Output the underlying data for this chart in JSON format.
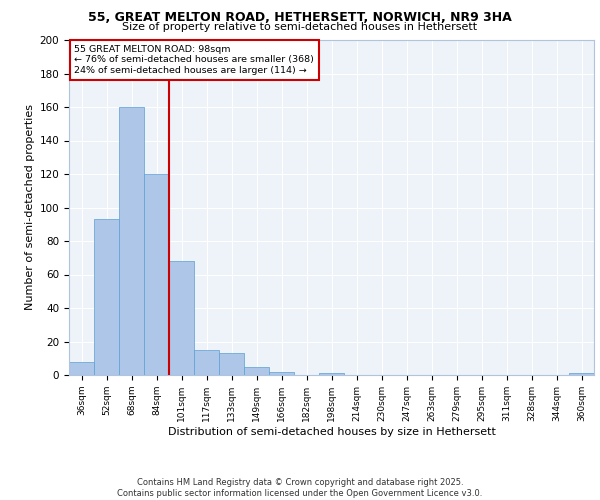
{
  "title_line1": "55, GREAT MELTON ROAD, HETHERSETT, NORWICH, NR9 3HA",
  "title_line2": "Size of property relative to semi-detached houses in Hethersett",
  "xlabel": "Distribution of semi-detached houses by size in Hethersett",
  "ylabel": "Number of semi-detached properties",
  "categories": [
    "36sqm",
    "52sqm",
    "68sqm",
    "84sqm",
    "101sqm",
    "117sqm",
    "133sqm",
    "149sqm",
    "166sqm",
    "182sqm",
    "198sqm",
    "214sqm",
    "230sqm",
    "247sqm",
    "263sqm",
    "279sqm",
    "295sqm",
    "311sqm",
    "328sqm",
    "344sqm",
    "360sqm"
  ],
  "values": [
    8,
    93,
    160,
    120,
    68,
    15,
    13,
    5,
    2,
    0,
    1,
    0,
    0,
    0,
    0,
    0,
    0,
    0,
    0,
    0,
    1
  ],
  "bar_color": "#aec6e8",
  "bar_edge_color": "#5a9fd4",
  "vline_color": "#cc0000",
  "annotation_box_color": "#cc0000",
  "annotation_title": "55 GREAT MELTON ROAD: 98sqm",
  "annotation_line2": "← 76% of semi-detached houses are smaller (368)",
  "annotation_line3": "24% of semi-detached houses are larger (114) →",
  "background_color": "#eef2f9",
  "grid_color": "#ffffff",
  "ylim": [
    0,
    200
  ],
  "yticks": [
    0,
    20,
    40,
    60,
    80,
    100,
    120,
    140,
    160,
    180,
    200
  ],
  "vline_x": 3.5,
  "footer_line1": "Contains HM Land Registry data © Crown copyright and database right 2025.",
  "footer_line2": "Contains public sector information licensed under the Open Government Licence v3.0."
}
